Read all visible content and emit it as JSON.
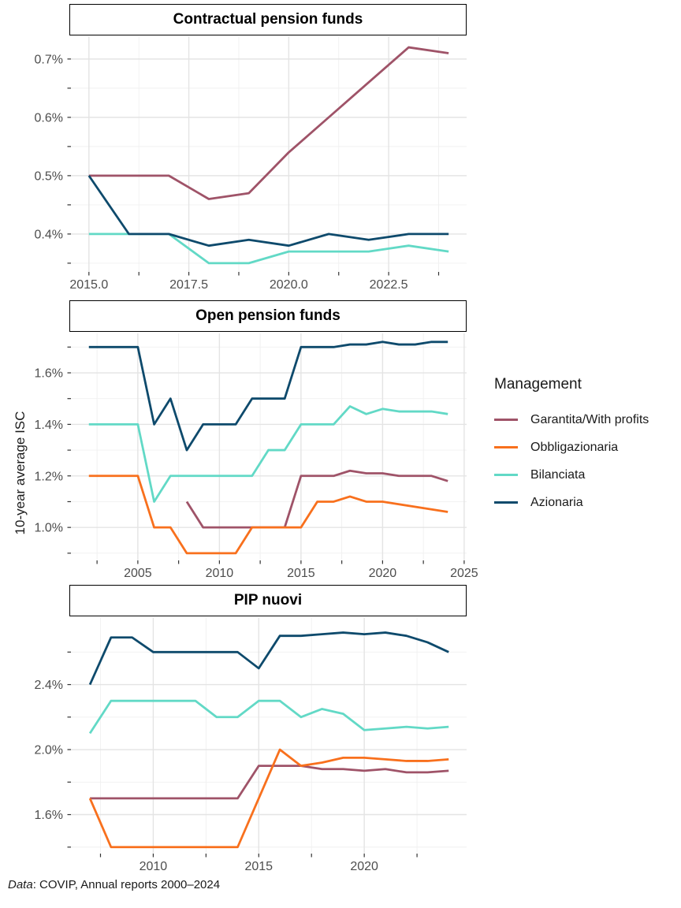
{
  "y_axis_title": "10-year average ISC",
  "caption": {
    "data_label": "Data",
    "text": ": COVIP, Annual reports 2000–2024"
  },
  "legend": {
    "title": "Management",
    "position": "right",
    "items": [
      {
        "label": "Garantita/With profits",
        "color": "#9F5368"
      },
      {
        "label": "Obbligazionaria",
        "color": "#F8701D"
      },
      {
        "label": "Bilanciata",
        "color": "#62D9C6"
      },
      {
        "label": "Azionaria",
        "color": "#0E4A6C"
      }
    ]
  },
  "style_colors": {
    "grid_major": "#E4E4E4",
    "grid_minor": "#F0F0F0",
    "tick": "#333333",
    "axis_text": "#4D4D4D",
    "strip_border": "#000000",
    "background": "#FFFFFF"
  },
  "chart_data": [
    {
      "type": "line",
      "title": "Contractual pension funds",
      "xlabel": "",
      "ylabel": "10-year average ISC",
      "grid": true,
      "xlim": [
        2014.55,
        2024.45
      ],
      "ylim": [
        0.335,
        0.739
      ],
      "x_ticks": {
        "labels": [
          "2015.0",
          "2017.5",
          "2020.0",
          "2022.5"
        ],
        "values": [
          2015,
          2017.5,
          2020,
          2022.5
        ]
      },
      "x_minor": [
        2016.25,
        2018.75,
        2021.25,
        2023.75
      ],
      "y_ticks": {
        "labels": [
          "0.4%",
          "0.5%",
          "0.6%",
          "0.7%"
        ],
        "values": [
          0.4,
          0.5,
          0.6,
          0.7
        ]
      },
      "y_minor": [
        0.35,
        0.45,
        0.55,
        0.65
      ],
      "series": [
        {
          "name": "Garantita/With profits",
          "x_start": 2015,
          "values": [
            0.5,
            0.5,
            0.5,
            0.46,
            0.47,
            0.54,
            0.6,
            0.66,
            0.72,
            0.71
          ]
        },
        {
          "name": "Bilanciata",
          "x_start": 2015,
          "values": [
            0.4,
            0.4,
            0.4,
            0.35,
            0.35,
            0.37,
            0.37,
            0.37,
            0.38,
            0.37
          ]
        },
        {
          "name": "Azionaria",
          "x_start": 2015,
          "values": [
            0.5,
            0.4,
            0.4,
            0.38,
            0.39,
            0.38,
            0.4,
            0.39,
            0.4,
            0.4
          ]
        }
      ]
    },
    {
      "type": "line",
      "title": "Open pension funds",
      "xlabel": "",
      "ylabel": "10-year average ISC",
      "grid": true,
      "xlim": [
        2000.9,
        2025.15
      ],
      "ylim": [
        0.872,
        1.753
      ],
      "x_ticks": {
        "labels": [
          "2005",
          "2010",
          "2015",
          "2020",
          "2025"
        ],
        "values": [
          2005,
          2010,
          2015,
          2020,
          2025
        ]
      },
      "x_minor": [
        2002.5,
        2007.5,
        2012.5,
        2017.5,
        2022.5
      ],
      "y_ticks": {
        "labels": [
          "1.0%",
          "1.2%",
          "1.4%",
          "1.6%"
        ],
        "values": [
          1.0,
          1.2,
          1.4,
          1.6
        ]
      },
      "y_minor": [
        0.9,
        1.1,
        1.3,
        1.5,
        1.7
      ],
      "series": [
        {
          "name": "Garantita/With profits",
          "x_start": 2008,
          "values": [
            1.1,
            1.0,
            1.0,
            1.0,
            1.0,
            1.0,
            1.0,
            1.2,
            1.2,
            1.2,
            1.22,
            1.21,
            1.21,
            1.2,
            1.2,
            1.2,
            1.18
          ]
        },
        {
          "name": "Obbligazionaria",
          "x_start": 2002,
          "values": [
            1.2,
            1.2,
            1.2,
            1.2,
            1.0,
            1.0,
            0.9,
            0.9,
            0.9,
            0.9,
            1.0,
            1.0,
            1.0,
            1.0,
            1.1,
            1.1,
            1.12,
            1.1,
            1.1,
            1.09,
            1.08,
            1.07,
            1.06
          ]
        },
        {
          "name": "Bilanciata",
          "x_start": 2002,
          "values": [
            1.4,
            1.4,
            1.4,
            1.4,
            1.1,
            1.2,
            1.2,
            1.2,
            1.2,
            1.2,
            1.2,
            1.3,
            1.3,
            1.4,
            1.4,
            1.4,
            1.47,
            1.44,
            1.46,
            1.45,
            1.45,
            1.45,
            1.44
          ]
        },
        {
          "name": "Azionaria",
          "x_start": 2002,
          "values": [
            1.7,
            1.7,
            1.7,
            1.7,
            1.4,
            1.5,
            1.3,
            1.4,
            1.4,
            1.4,
            1.5,
            1.5,
            1.5,
            1.7,
            1.7,
            1.7,
            1.71,
            1.71,
            1.72,
            1.71,
            1.71,
            1.72,
            1.72
          ]
        }
      ]
    },
    {
      "type": "line",
      "title": "PIP nuovi",
      "xlabel": "",
      "ylabel": "10-year average ISC",
      "grid": true,
      "xlim": [
        2006.1,
        2024.85
      ],
      "ylim": [
        1.36,
        2.81
      ],
      "x_ticks": {
        "labels": [
          "2010",
          "2015",
          "2020"
        ],
        "values": [
          2010,
          2015,
          2020
        ]
      },
      "x_minor": [
        2007.5,
        2012.5,
        2017.5,
        2022.5
      ],
      "y_ticks": {
        "labels": [
          "1.6%",
          "2.0%",
          "2.4%"
        ],
        "values": [
          1.6,
          2.0,
          2.4
        ]
      },
      "y_minor": [
        1.4,
        1.8,
        2.2,
        2.6
      ],
      "series": [
        {
          "name": "Garantita/With profits",
          "x_start": 2007,
          "values": [
            1.7,
            1.7,
            1.7,
            1.7,
            1.7,
            1.7,
            1.7,
            1.7,
            1.9,
            1.9,
            1.9,
            1.88,
            1.88,
            1.87,
            1.88,
            1.86,
            1.86,
            1.87
          ]
        },
        {
          "name": "Obbligazionaria",
          "x_start": 2007,
          "values": [
            1.7,
            1.4,
            1.4,
            1.4,
            1.4,
            1.4,
            1.4,
            1.4,
            1.7,
            2.0,
            1.9,
            1.92,
            1.95,
            1.95,
            1.94,
            1.93,
            1.93,
            1.94
          ]
        },
        {
          "name": "Bilanciata",
          "x_start": 2007,
          "values": [
            2.1,
            2.3,
            2.3,
            2.3,
            2.3,
            2.3,
            2.2,
            2.2,
            2.3,
            2.3,
            2.2,
            2.25,
            2.22,
            2.12,
            2.13,
            2.14,
            2.13,
            2.14
          ]
        },
        {
          "name": "Azionaria",
          "x_start": 2007,
          "values": [
            2.4,
            2.69,
            2.69,
            2.6,
            2.6,
            2.6,
            2.6,
            2.6,
            2.5,
            2.7,
            2.7,
            2.71,
            2.72,
            2.71,
            2.72,
            2.7,
            2.66,
            2.6
          ]
        }
      ]
    }
  ]
}
